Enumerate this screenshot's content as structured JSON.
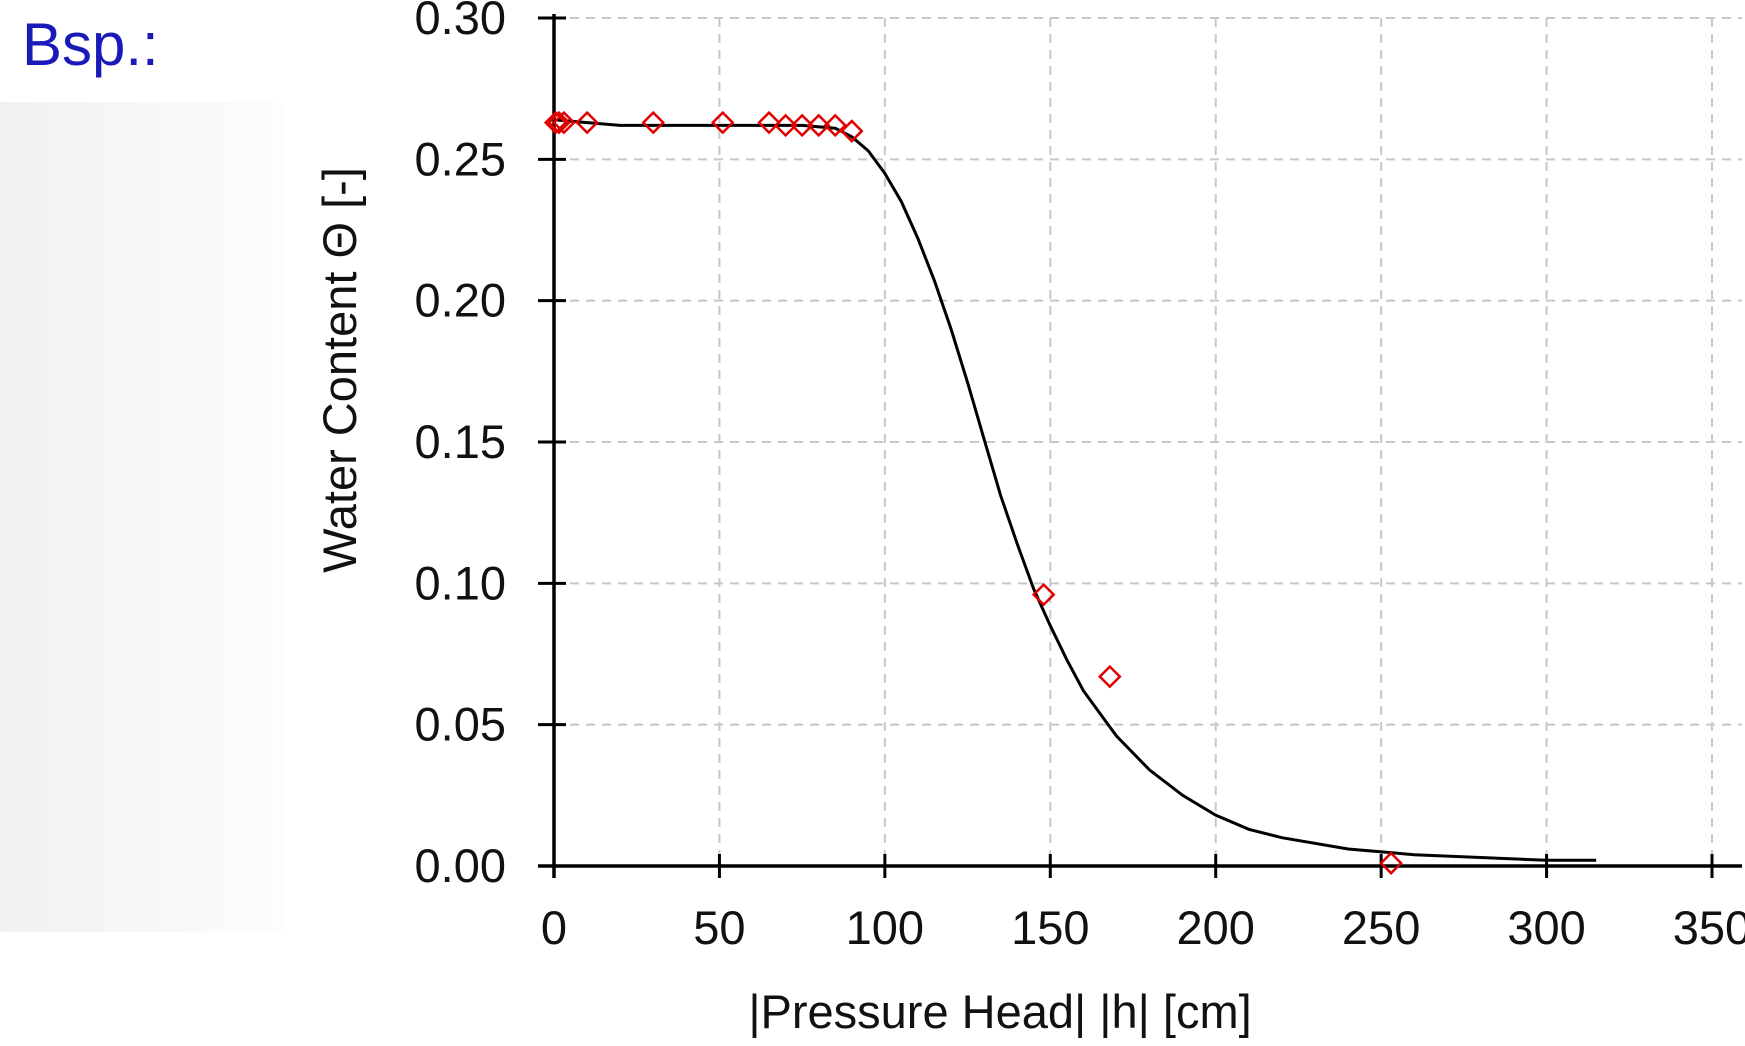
{
  "slide": {
    "label": "Bsp.:"
  },
  "colors": {
    "curve": "#000000",
    "points": "#e00000",
    "grid": "#c8c8c8",
    "label": "#1a1ab8"
  },
  "chart_data": {
    "type": "scatter",
    "title": "",
    "xlabel": "|Pressure Head| |h| [cm]",
    "ylabel": "Water Content  Θ [-]",
    "xlim": [
      0,
      350
    ],
    "ylim": [
      0,
      0.3
    ],
    "xticks": [
      "0",
      "50",
      "100",
      "150",
      "200",
      "250",
      "300",
      "350"
    ],
    "yticks": [
      "0.00",
      "0.05",
      "0.10",
      "0.15",
      "0.20",
      "0.25",
      "0.30"
    ],
    "grid": true,
    "legend": "none",
    "series": [
      {
        "kind": "points",
        "marker": "diamond-open",
        "x": [
          0.5,
          1.5,
          3,
          10,
          30,
          51,
          65,
          70,
          75,
          80,
          85,
          90,
          148,
          168,
          253
        ],
        "y": [
          0.263,
          0.263,
          0.263,
          0.263,
          0.263,
          0.263,
          0.263,
          0.262,
          0.262,
          0.262,
          0.262,
          0.26,
          0.096,
          0.067,
          0.001
        ]
      },
      {
        "kind": "line",
        "x": [
          0,
          10,
          20,
          40,
          60,
          75,
          85,
          90,
          95,
          100,
          105,
          110,
          115,
          120,
          125,
          130,
          135,
          140,
          145,
          150,
          155,
          160,
          165,
          170,
          180,
          190,
          200,
          210,
          220,
          240,
          260,
          280,
          300,
          315
        ],
        "y": [
          0.264,
          0.263,
          0.262,
          0.262,
          0.262,
          0.262,
          0.261,
          0.258,
          0.253,
          0.245,
          0.235,
          0.222,
          0.207,
          0.19,
          0.171,
          0.151,
          0.131,
          0.114,
          0.098,
          0.085,
          0.073,
          0.062,
          0.054,
          0.046,
          0.034,
          0.025,
          0.018,
          0.013,
          0.01,
          0.006,
          0.004,
          0.003,
          0.002,
          0.002
        ]
      }
    ]
  }
}
